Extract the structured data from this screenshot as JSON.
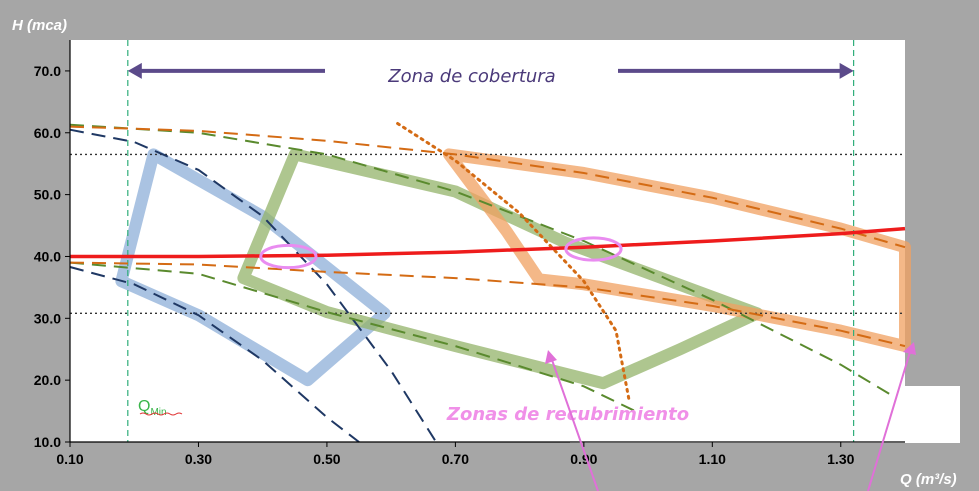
{
  "chart_data": {
    "type": "line",
    "xlabel": "Q (m³/s)",
    "ylabel": "H (mca)",
    "xlim": [
      0.1,
      1.4
    ],
    "ylim": [
      10.0,
      75.0
    ],
    "x_ticks": [
      "0.10",
      "0.30",
      "0.50",
      "0.70",
      "0.90",
      "1.10",
      "1.30"
    ],
    "y_ticks": [
      "10.0",
      "20.0",
      "30.0",
      "40.0",
      "50.0",
      "60.0",
      "70.0"
    ],
    "grid": false,
    "horizontal_reference_lines": [
      56.5,
      30.8
    ],
    "vertical_reference_lines": [
      0.19,
      1.32
    ],
    "coverage_arrow": {
      "x_start": 0.19,
      "x_end": 1.32,
      "y": 70.0
    },
    "annotations": {
      "coverage_label": "Zona de cobertura",
      "overlap_label": "Zonas de recubrimiento",
      "qmin_main": "Q",
      "qmin_sub": "Min"
    },
    "series": [
      {
        "style": "system-curve",
        "color": "#ee1c1c",
        "points": [
          [
            0.1,
            40.0
          ],
          [
            0.3,
            40.0
          ],
          [
            0.5,
            40.2
          ],
          [
            0.7,
            40.7
          ],
          [
            0.9,
            41.5
          ],
          [
            1.1,
            42.5
          ],
          [
            1.3,
            43.7
          ],
          [
            1.4,
            44.5
          ]
        ]
      },
      {
        "style": "pump-curve",
        "color": "#1f3864",
        "points": [
          [
            0.1,
            60.5
          ],
          [
            0.2,
            58.5
          ],
          [
            0.3,
            54.0
          ],
          [
            0.4,
            46.5
          ],
          [
            0.5,
            35.5
          ],
          [
            0.6,
            21.5
          ],
          [
            0.67,
            10.0
          ]
        ]
      },
      {
        "style": "pump-curve",
        "color": "#1f3864",
        "points": [
          [
            0.1,
            38.3
          ],
          [
            0.2,
            35.5
          ],
          [
            0.3,
            30.5
          ],
          [
            0.4,
            23.2
          ],
          [
            0.5,
            14.0
          ],
          [
            0.55,
            10.0
          ]
        ]
      },
      {
        "style": "pump-curve",
        "color": "#5a8a2e",
        "points": [
          [
            0.1,
            61.3
          ],
          [
            0.3,
            60.0
          ],
          [
            0.5,
            56.5
          ],
          [
            0.7,
            50.5
          ],
          [
            0.9,
            42.5
          ],
          [
            1.1,
            33.0
          ],
          [
            1.3,
            22.5
          ],
          [
            1.38,
            17.5
          ]
        ]
      },
      {
        "style": "pump-curve",
        "color": "#5a8a2e",
        "points": [
          [
            0.1,
            39.0
          ],
          [
            0.3,
            37.2
          ],
          [
            0.5,
            31.0
          ],
          [
            0.7,
            25.5
          ],
          [
            0.9,
            19.0
          ],
          [
            0.98,
            15.0
          ]
        ]
      },
      {
        "style": "pump-curve",
        "color": "#d46b14",
        "points": [
          [
            0.1,
            61.0
          ],
          [
            0.3,
            60.3
          ],
          [
            0.5,
            58.7
          ],
          [
            0.7,
            56.5
          ],
          [
            0.9,
            53.5
          ],
          [
            1.1,
            49.5
          ],
          [
            1.3,
            44.5
          ],
          [
            1.4,
            41.5
          ]
        ]
      },
      {
        "style": "pump-curve",
        "color": "#d46b14",
        "points": [
          [
            0.1,
            39.0
          ],
          [
            0.3,
            38.7
          ],
          [
            0.5,
            37.5
          ],
          [
            0.7,
            36.5
          ],
          [
            0.9,
            35.0
          ],
          [
            1.1,
            32.0
          ],
          [
            1.3,
            28.0
          ],
          [
            1.4,
            25.5
          ]
        ]
      },
      {
        "style": "pump-curve",
        "color": "#d46b14",
        "dotted": true,
        "points": [
          [
            0.61,
            61.5
          ],
          [
            0.7,
            55.5
          ],
          [
            0.8,
            47.0
          ],
          [
            0.9,
            36.0
          ],
          [
            0.95,
            28.0
          ],
          [
            0.97,
            17.0
          ]
        ]
      },
      {
        "style": "operating-zone",
        "color": "#8eafd8",
        "points": [
          [
            0.18,
            36.0
          ],
          [
            0.23,
            56.5
          ],
          [
            0.4,
            46.5
          ],
          [
            0.59,
            30.8
          ],
          [
            0.47,
            20.0
          ],
          [
            0.3,
            30.5
          ],
          [
            0.18,
            36.0
          ]
        ]
      },
      {
        "style": "operating-zone",
        "color": "#93b36a",
        "points": [
          [
            0.37,
            36.5
          ],
          [
            0.45,
            56.5
          ],
          [
            0.7,
            50.5
          ],
          [
            0.87,
            42.3
          ],
          [
            1.17,
            30.8
          ],
          [
            1.05,
            25.0
          ],
          [
            0.93,
            19.5
          ],
          [
            0.7,
            25.5
          ],
          [
            0.5,
            31.0
          ],
          [
            0.37,
            36.5
          ]
        ]
      },
      {
        "style": "operating-zone",
        "color": "#f0a060",
        "points": [
          [
            0.69,
            56.5
          ],
          [
            0.9,
            53.5
          ],
          [
            1.1,
            49.5
          ],
          [
            1.3,
            44.5
          ],
          [
            1.4,
            41.5
          ],
          [
            1.4,
            25.5
          ],
          [
            1.3,
            28.0
          ],
          [
            1.1,
            32.0
          ],
          [
            0.9,
            35.5
          ],
          [
            0.83,
            36.3
          ],
          [
            0.78,
            44.0
          ],
          [
            0.69,
            56.5
          ]
        ]
      }
    ],
    "highlight_ellipses": [
      {
        "x": 0.44,
        "y": 40.0,
        "rx": 0.043,
        "ry": 1.8
      },
      {
        "x": 0.915,
        "y": 41.2,
        "rx": 0.043,
        "ry": 1.8
      }
    ]
  }
}
